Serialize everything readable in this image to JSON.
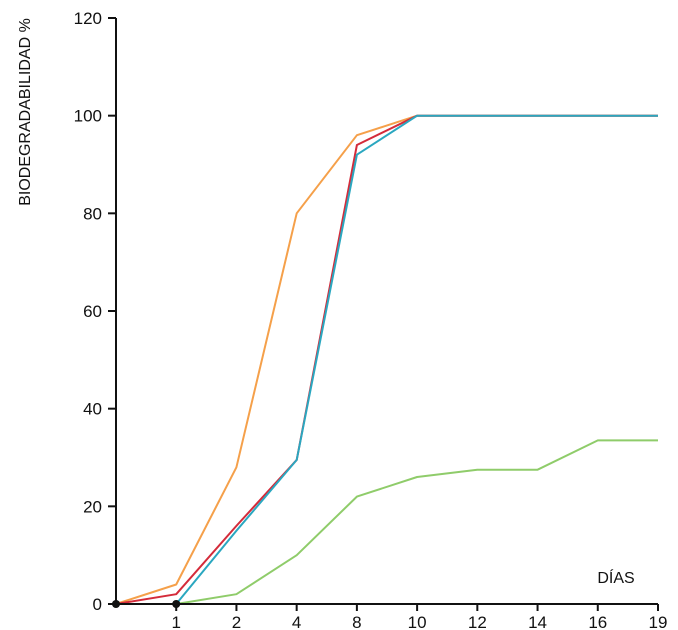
{
  "chart_data": {
    "type": "line",
    "xlabel": "DÍAS",
    "ylabel": "BIODEGRADABILIDAD %",
    "categories": [
      "0",
      "1",
      "2",
      "4",
      "8",
      "10",
      "12",
      "14",
      "16",
      "19"
    ],
    "x_tick_labels": [
      "1",
      "2",
      "4",
      "8",
      "10",
      "12",
      "14",
      "16",
      "19"
    ],
    "y_ticks": [
      0,
      20,
      40,
      60,
      80,
      100,
      120
    ],
    "ylim": [
      0,
      120
    ],
    "grid": false,
    "legend": "none",
    "series": [
      {
        "color": "#f5a04a",
        "values": [
          0,
          4,
          28,
          80,
          96,
          100,
          100,
          100,
          100,
          100
        ]
      },
      {
        "color": "#d42b3a",
        "values": [
          0,
          2,
          16,
          29.5,
          94,
          100,
          100,
          100,
          100,
          100
        ]
      },
      {
        "color": "#2aa7c0",
        "values": [
          0,
          0,
          15,
          29.5,
          92,
          100,
          100,
          100,
          100,
          100
        ]
      },
      {
        "color": "#8fcc6a",
        "values": [
          0,
          0,
          2,
          10,
          22,
          26,
          27.5,
          27.5,
          33.5,
          33.5
        ]
      }
    ]
  }
}
